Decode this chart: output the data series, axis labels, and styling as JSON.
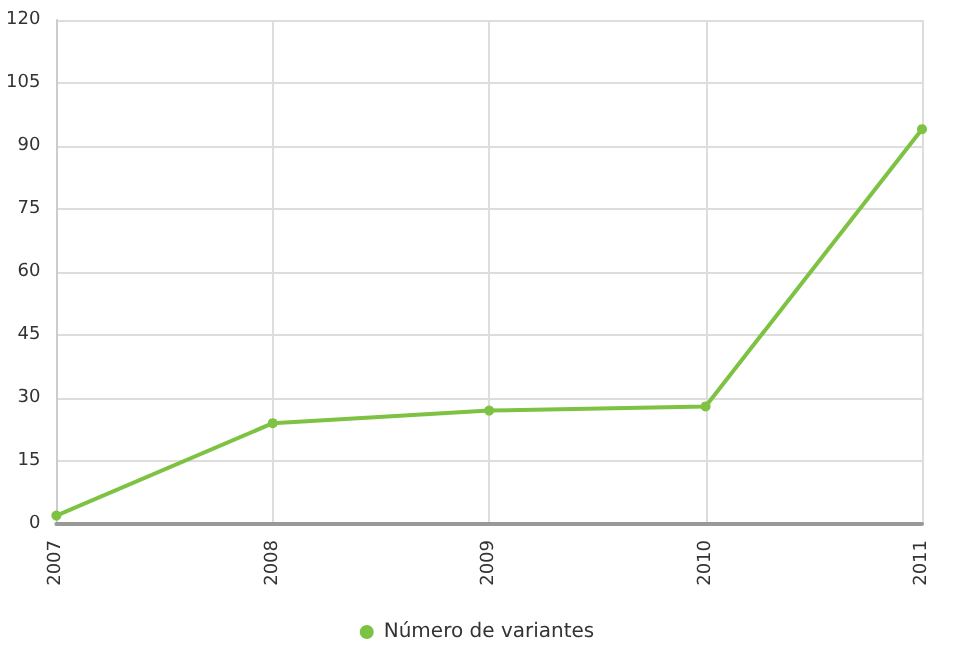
{
  "chart_data": {
    "type": "line",
    "categories": [
      "2007",
      "2008",
      "2009",
      "2010",
      "2011"
    ],
    "series": [
      {
        "name": "Número de variantes",
        "color": "#7dc242",
        "values": [
          2,
          24,
          27,
          28,
          94
        ]
      }
    ],
    "ylim": [
      0,
      120
    ],
    "yticks": [
      0,
      15,
      30,
      45,
      60,
      75,
      90,
      105,
      120
    ],
    "grid": true,
    "legend": "bottom",
    "marker": "circle"
  }
}
